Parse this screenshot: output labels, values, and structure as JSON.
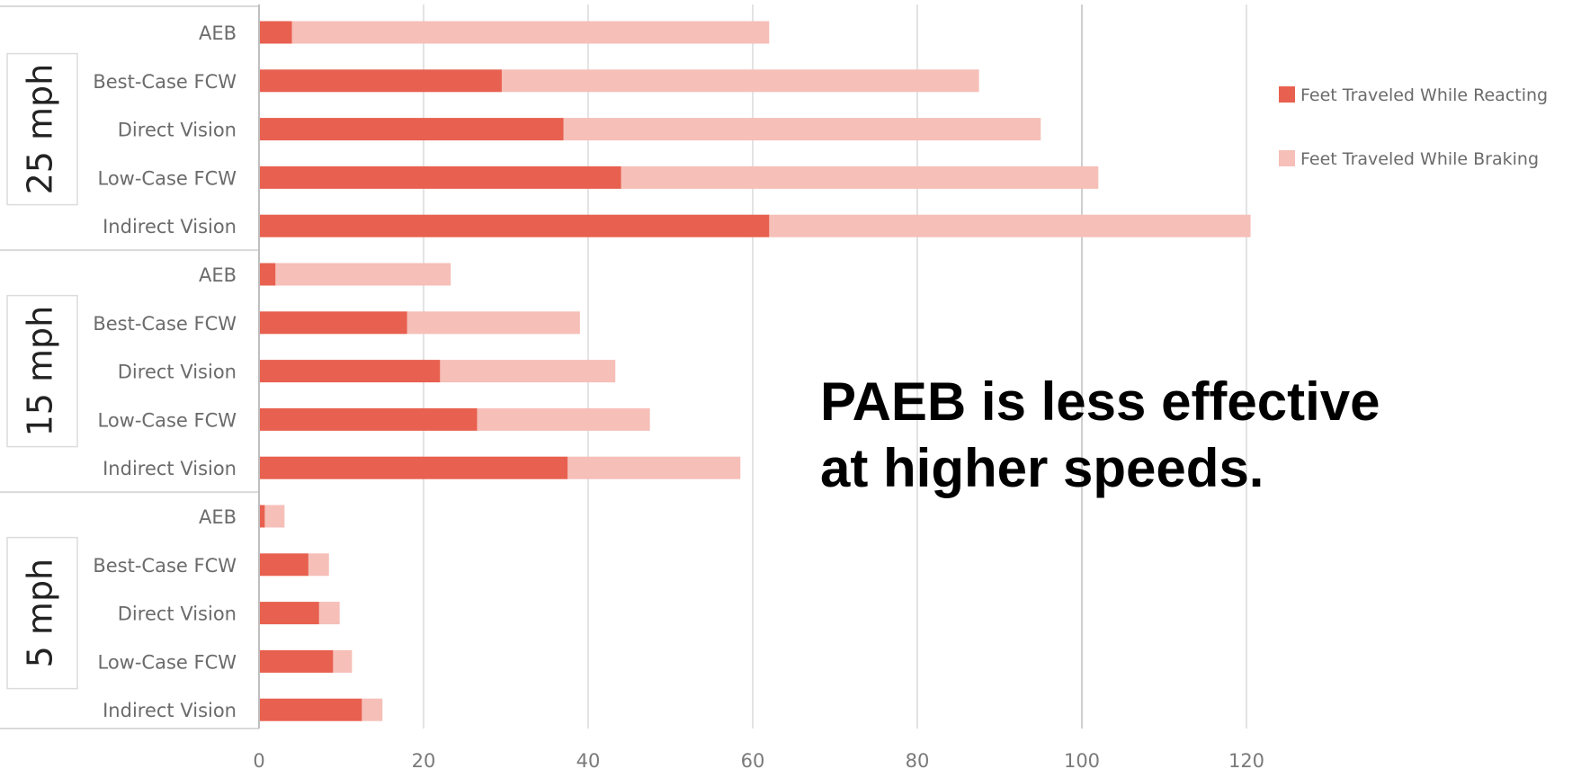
{
  "chart_data": {
    "type": "bar",
    "orientation": "horizontal",
    "stacked": true,
    "groups": [
      {
        "label": "25 mph",
        "categories": [
          "AEB",
          "Best-Case FCW",
          "Direct Vision",
          "Low-Case FCW",
          "Indirect Vision"
        ]
      },
      {
        "label": "15 mph",
        "categories": [
          "AEB",
          "Best-Case FCW",
          "Direct Vision",
          "Low-Case FCW",
          "Indirect Vision"
        ]
      },
      {
        "label": "5 mph",
        "categories": [
          "AEB",
          "Best-Case FCW",
          "Direct Vision",
          "Low-Case FCW",
          "Indirect Vision"
        ]
      }
    ],
    "series": [
      {
        "name": "Feet Traveled While Reacting",
        "color": "#e8604f",
        "values": [
          4,
          29.5,
          37,
          44,
          62,
          2,
          18,
          22,
          26.5,
          37.5,
          0.7,
          6,
          7.3,
          9,
          12.5
        ]
      },
      {
        "name": "Feet Traveled While Braking",
        "color": "#f6bfb8",
        "values": [
          58,
          58,
          58,
          58,
          58.5,
          21.3,
          21,
          21.3,
          21,
          21,
          2.4,
          2.5,
          2.5,
          2.3,
          2.5
        ]
      }
    ],
    "xlim": [
      0,
      120
    ],
    "xticks": [
      "0",
      "20",
      "40",
      "60",
      "80",
      "100",
      "120"
    ],
    "grid": true,
    "legend_position": "right",
    "annotation": [
      "PAEB is less effective",
      "at higher speeds."
    ]
  },
  "colors": {
    "grid": "#e3e3e3",
    "axis": "#bfbfbf",
    "text": "#6b6b6b"
  }
}
